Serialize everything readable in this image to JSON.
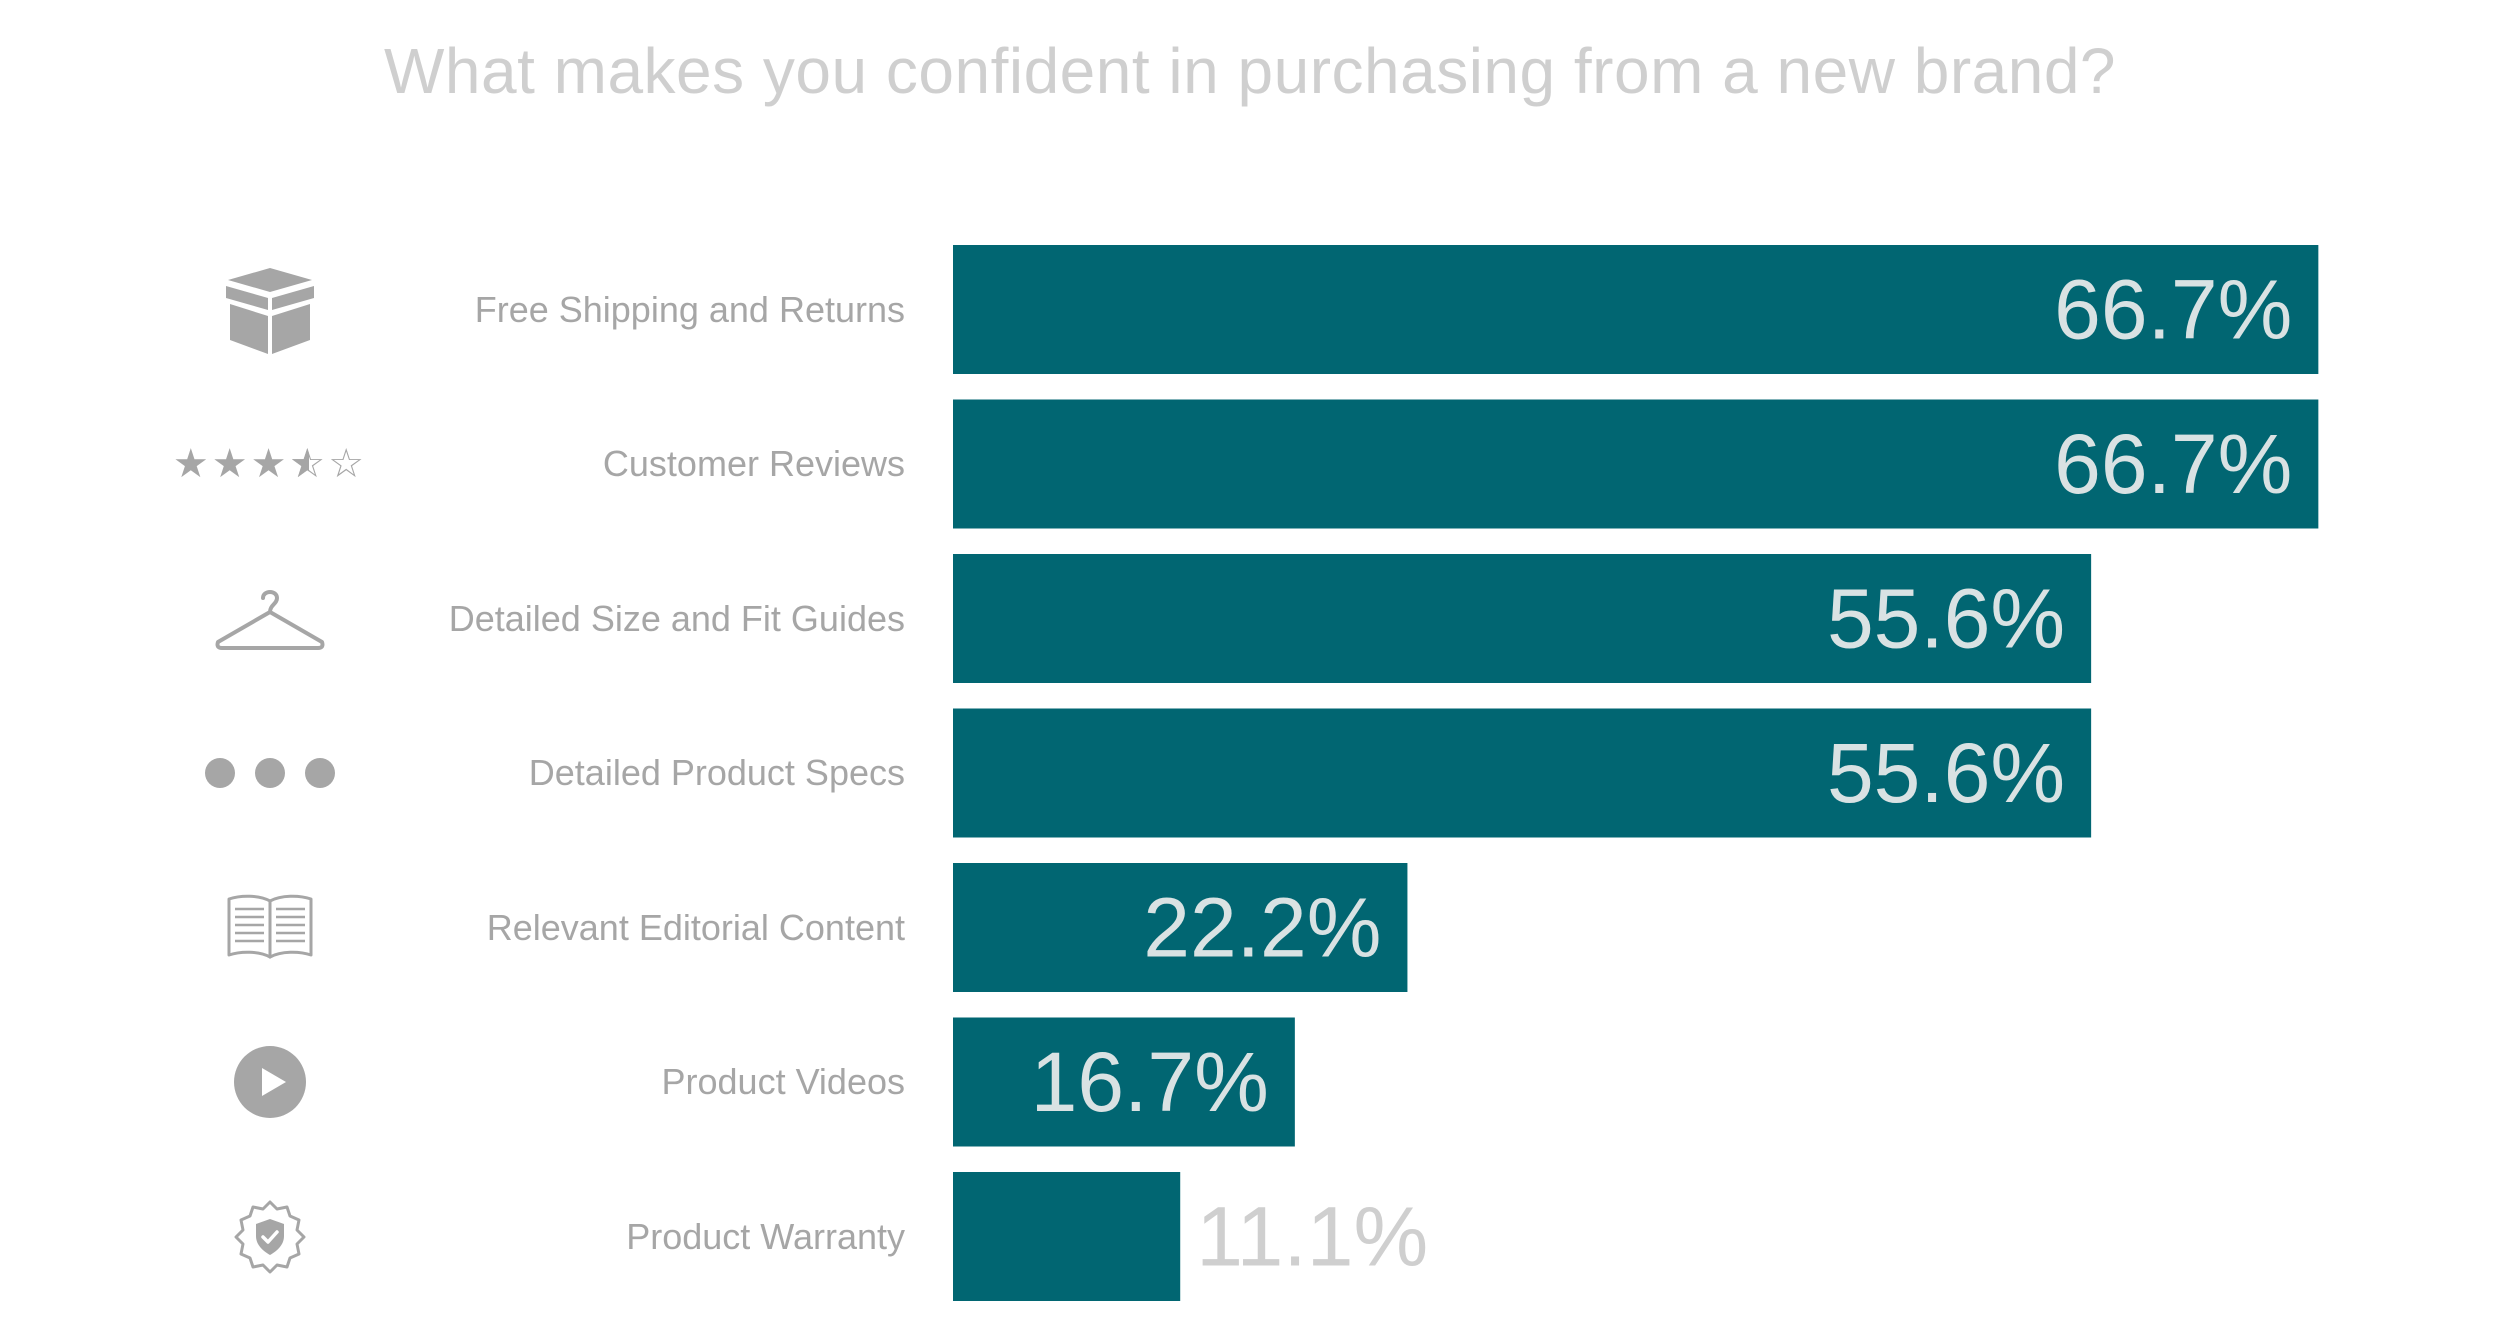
{
  "chart_data": {
    "type": "bar",
    "orientation": "horizontal",
    "title": "What makes you confident in purchasing from a new brand?",
    "categories": [
      "Free Shipping and Returns",
      "Customer Reviews",
      "Detailed Size and Fit Guides",
      "Detailed Product Specs",
      "Relevant Editorial Content",
      "Product Videos",
      "Product Warranty"
    ],
    "values": [
      66.7,
      66.7,
      55.6,
      55.6,
      22.2,
      16.7,
      11.1
    ],
    "value_labels": [
      "66.7%",
      "66.7%",
      "55.6%",
      "55.6%",
      "22.2%",
      "16.7%",
      "11.1%"
    ],
    "icons": [
      "box-icon",
      "star-rating-icon",
      "hanger-icon",
      "dots-icon",
      "book-icon",
      "play-icon",
      "shield-badge-icon"
    ],
    "xlim": [
      0,
      100
    ],
    "xlabel": "",
    "ylabel": "",
    "grid": false,
    "legend": "none",
    "colors": {
      "bar": "#016672",
      "label_inside": "#d9e2e3",
      "label_outside": "#cfcfcf",
      "text": "#a6a6a6",
      "icon": "#a6a6a6"
    }
  }
}
